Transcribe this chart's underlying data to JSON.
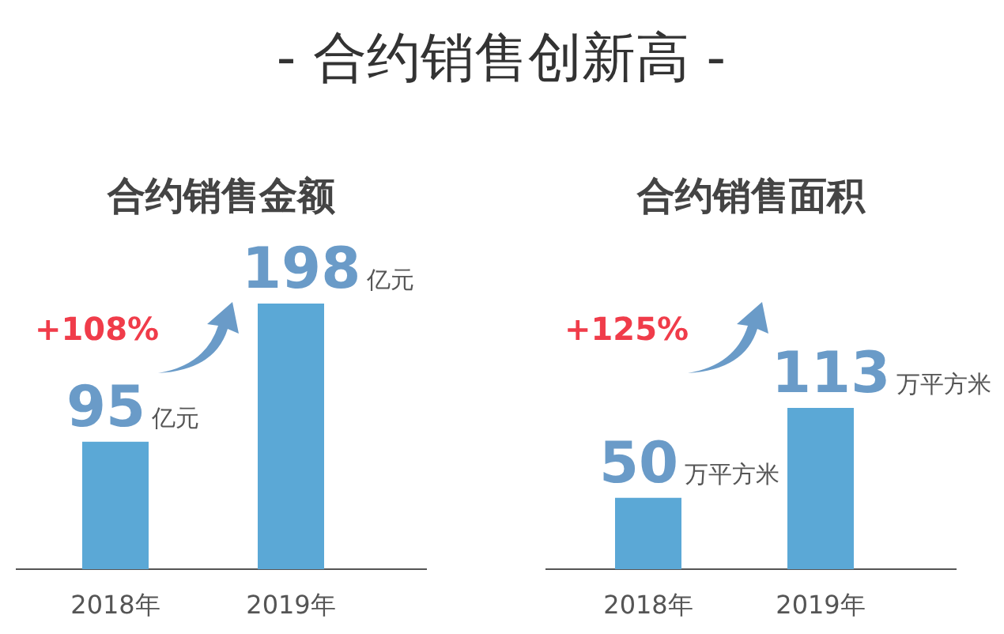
{
  "chart_data": [
    {
      "type": "bar",
      "title": "- 合约销售创新高 -",
      "subtitle": "合约销售金额",
      "categories": [
        "2018年",
        "2019年"
      ],
      "values": [
        95,
        198
      ],
      "value_labels": [
        "95亿元",
        "198亿元"
      ],
      "color": "#5ba8d6",
      "annotations": [
        "+108%"
      ]
    },
    {
      "type": "bar",
      "subtitle": "合约销售面积",
      "categories": [
        "2018年",
        "2019年"
      ],
      "values": [
        50,
        113
      ],
      "value_labels": [
        "50万平方米",
        "113万平方米"
      ],
      "color": "#5ba8d6",
      "annotations": [
        "+125%"
      ]
    }
  ]
}
